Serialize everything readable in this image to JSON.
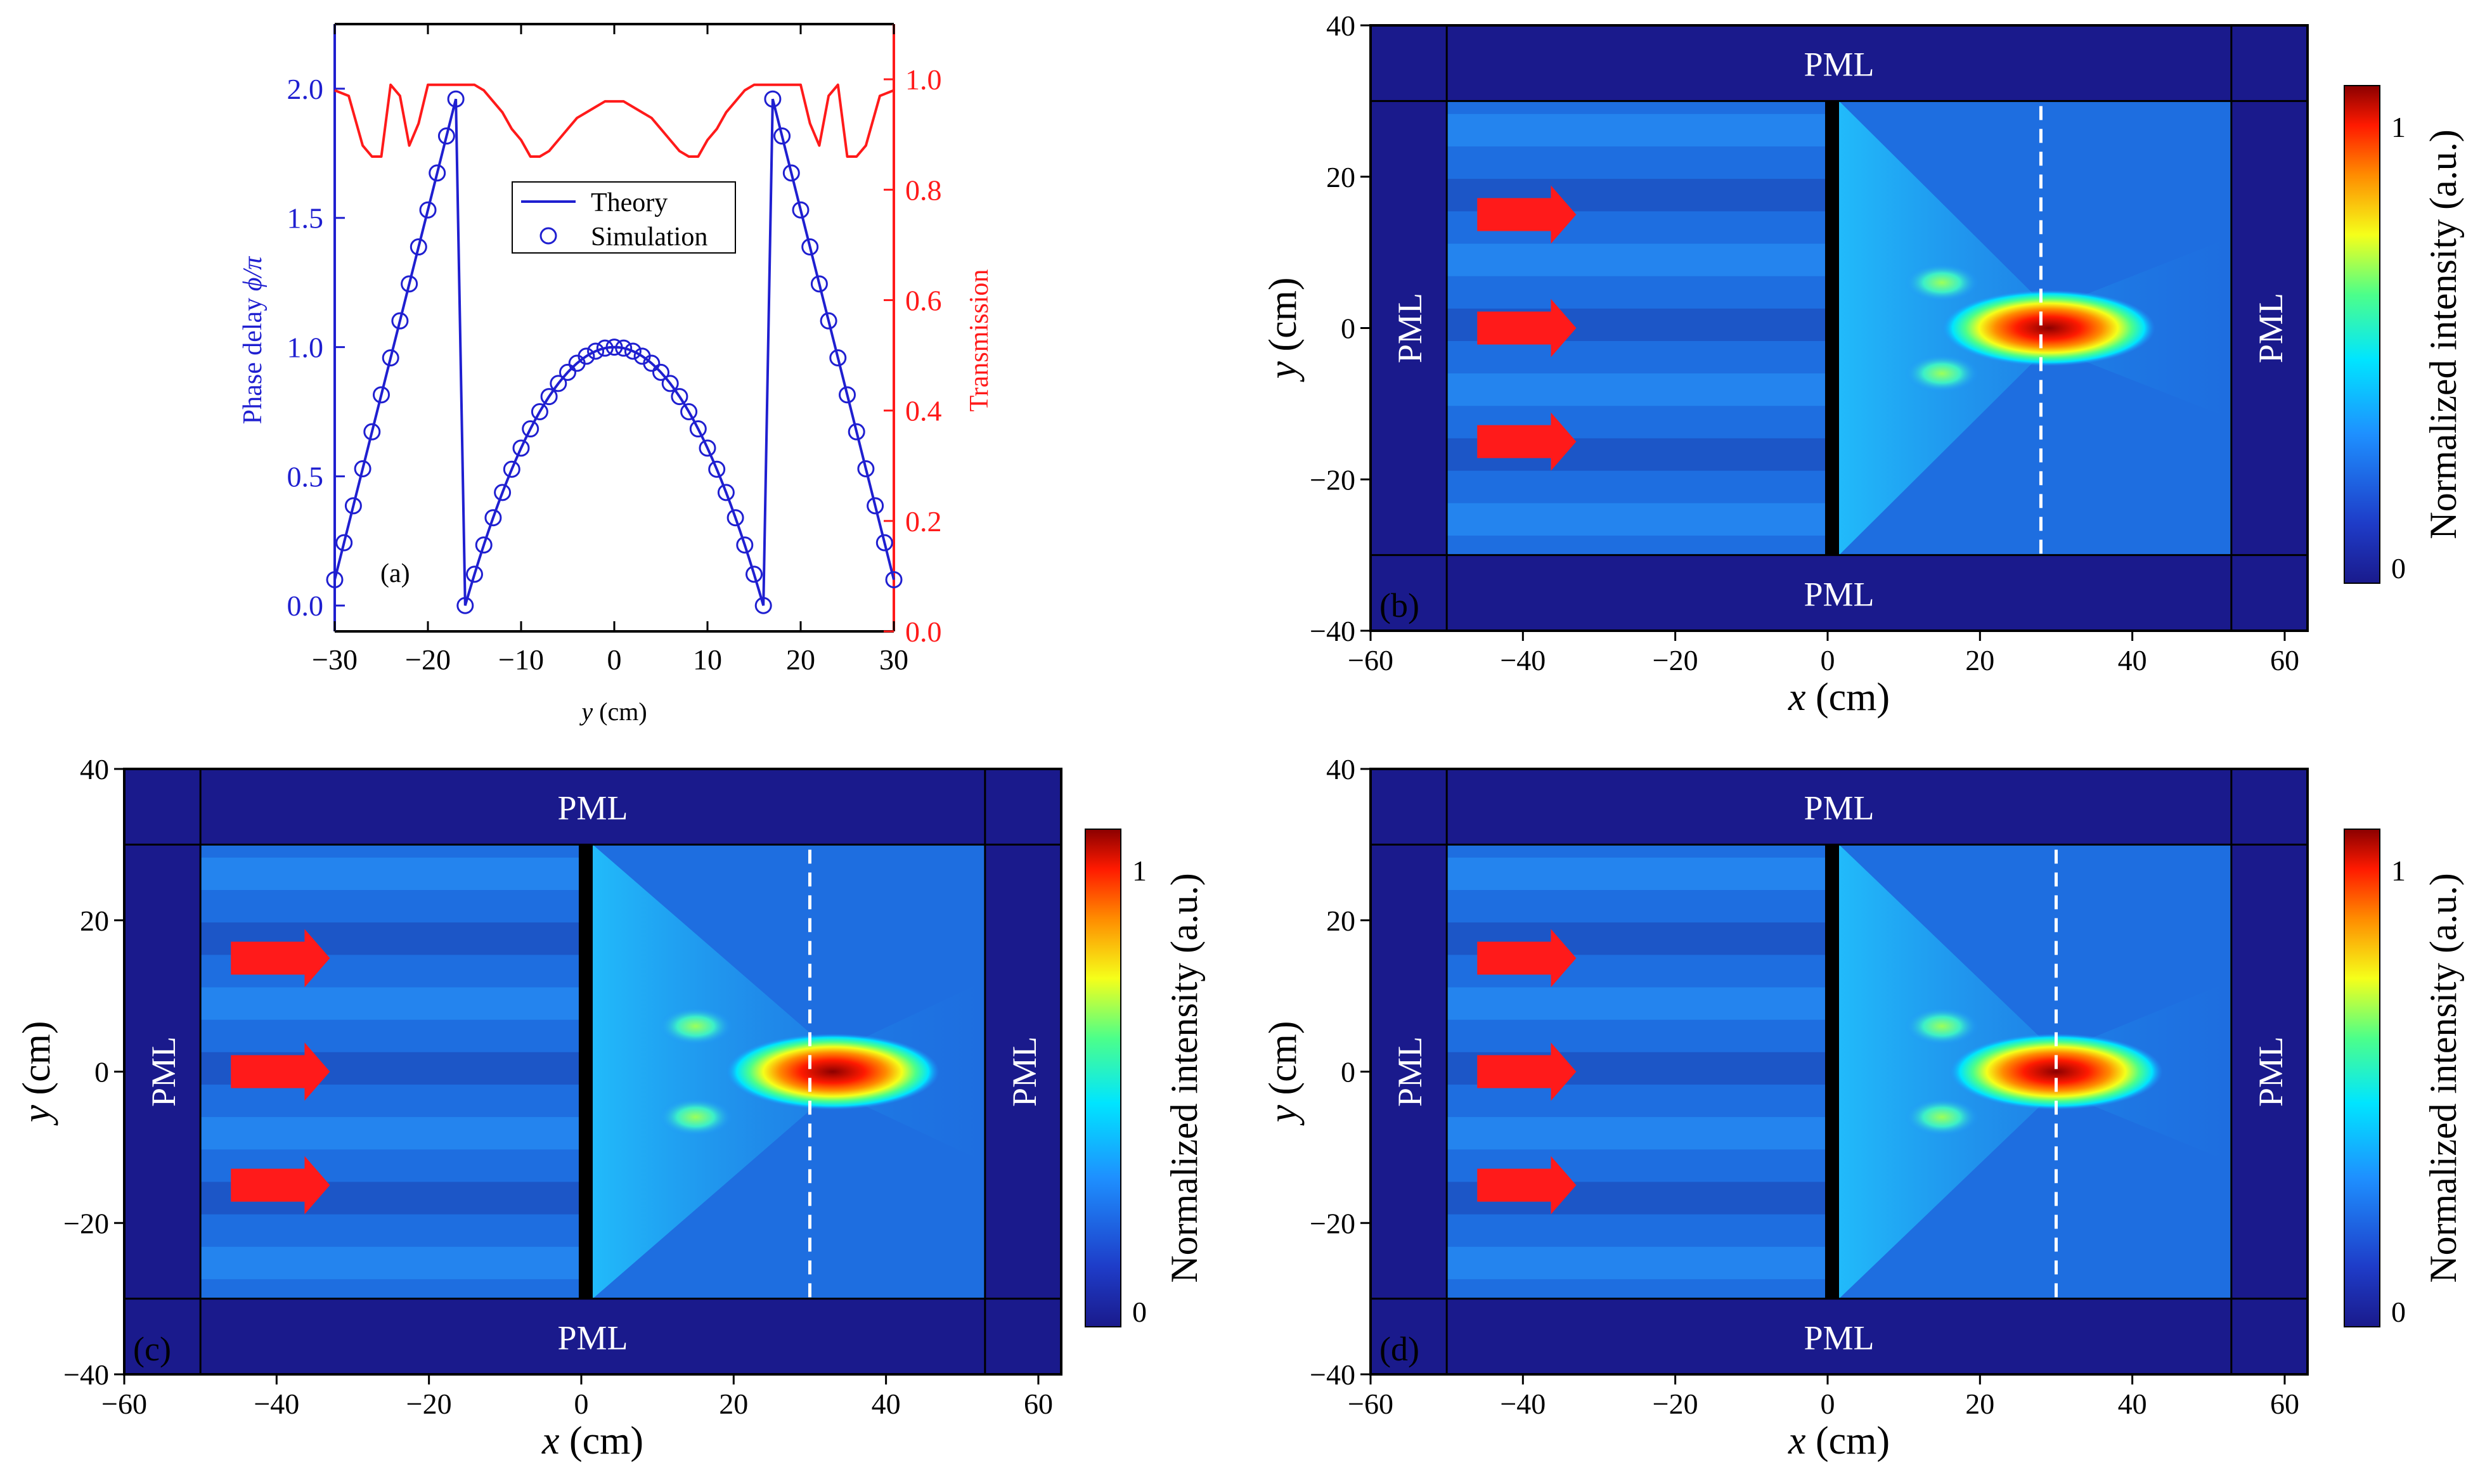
{
  "chart_data": [
    {
      "panel": "a",
      "type": "line",
      "panel_label": "(a)",
      "xlabel_var": "y",
      "xlabel_unit": "(cm)",
      "ylabel_left_text": "Phase delay ",
      "ylabel_left_var": "ϕ/π",
      "ylabel_right": "Transmission",
      "xlim": [
        -30,
        30
      ],
      "ylim_left": [
        -0.1,
        2.25
      ],
      "ylim_right": [
        0.0,
        1.1
      ],
      "x_ticks": [
        "−30",
        "−20",
        "−10",
        "0",
        "10",
        "20",
        "30"
      ],
      "y_ticks_left": [
        "0.0",
        "0.5",
        "1.0",
        "1.5",
        "2.0"
      ],
      "y_ticks_right": [
        "0.0",
        "0.2",
        "0.4",
        "0.6",
        "0.8",
        "1.0"
      ],
      "legend": [
        "Theory",
        "Simulation"
      ],
      "series": [
        {
          "name": "Theory",
          "axis": "left",
          "color": "#1f1fd0",
          "x": [
            -30,
            -17,
            -17,
            -16,
            0,
            16,
            17,
            17,
            30
          ],
          "y": [
            0.1,
            1.96,
            1.96,
            0.0,
            1.0,
            0.0,
            1.96,
            1.96,
            0.1
          ]
        },
        {
          "name": "Simulation",
          "axis": "left",
          "color": "#1f1fd0",
          "marker": "circle",
          "sampling": "every 1 cm from -30 to 30"
        },
        {
          "name": "Transmission",
          "axis": "right",
          "color": "#ff1a1a",
          "x": [
            -30,
            -28.5,
            -27,
            -26,
            -25,
            -24,
            -23,
            -22,
            -21,
            -20,
            -19,
            -18,
            -17,
            -16,
            -15,
            -14,
            -13,
            -12,
            -11,
            -10,
            -9,
            -8,
            -7,
            -6,
            -5,
            -4,
            -3,
            -2,
            -1,
            0,
            1,
            2,
            3,
            4,
            5,
            6,
            7,
            8,
            9,
            10,
            11,
            12,
            13,
            14,
            15,
            16,
            17,
            18,
            19,
            20,
            21,
            22,
            23,
            24,
            25,
            26,
            27,
            28.5,
            30
          ],
          "y": [
            0.98,
            0.97,
            0.88,
            0.86,
            0.86,
            0.99,
            0.97,
            0.88,
            0.92,
            0.99,
            0.99,
            0.99,
            0.99,
            0.99,
            0.99,
            0.98,
            0.96,
            0.94,
            0.91,
            0.89,
            0.86,
            0.86,
            0.87,
            0.89,
            0.91,
            0.93,
            0.94,
            0.95,
            0.96,
            0.96,
            0.96,
            0.95,
            0.94,
            0.93,
            0.91,
            0.89,
            0.87,
            0.86,
            0.86,
            0.89,
            0.91,
            0.94,
            0.96,
            0.98,
            0.99,
            0.99,
            0.99,
            0.99,
            0.99,
            0.99,
            0.92,
            0.88,
            0.97,
            0.99,
            0.86,
            0.86,
            0.88,
            0.97,
            0.98
          ]
        }
      ]
    },
    {
      "panel": "b",
      "type": "heatmap",
      "panel_label": "(b)",
      "xlabel_var": "x",
      "xlabel_unit": "(cm)",
      "ylabel_var": "y",
      "ylabel_unit": "(cm)",
      "xlim": [
        -60,
        63
      ],
      "ylim": [
        -40,
        40
      ],
      "x_ticks": [
        "−60",
        "−40",
        "−20",
        "0",
        "20",
        "40",
        "60"
      ],
      "y_ticks": [
        "−40",
        "−20",
        "0",
        "20",
        "40"
      ],
      "pml_labels": [
        "PML",
        "PML",
        "PML",
        "PML"
      ],
      "colorbar_label": "Normalized intensity (a.u.)",
      "colorbar_ticks": [
        "0",
        "1"
      ],
      "focus_x": 28,
      "focus_center_x": 29,
      "arrows_y": [
        15,
        0,
        -15
      ]
    },
    {
      "panel": "c",
      "type": "heatmap",
      "panel_label": "(c)",
      "xlabel_var": "x",
      "xlabel_unit": "(cm)",
      "ylabel_var": "y",
      "ylabel_unit": "(cm)",
      "xlim": [
        -60,
        63
      ],
      "ylim": [
        -40,
        40
      ],
      "x_ticks": [
        "−60",
        "−40",
        "−20",
        "0",
        "20",
        "40",
        "60"
      ],
      "y_ticks": [
        "−40",
        "−20",
        "0",
        "20",
        "40"
      ],
      "pml_labels": [
        "PML",
        "PML",
        "PML",
        "PML"
      ],
      "colorbar_label": "Normalized intensity (a.u.)",
      "colorbar_ticks": [
        "0",
        "1"
      ],
      "focus_x": 30,
      "focus_center_x": 33,
      "arrows_y": [
        15,
        0,
        -15
      ]
    },
    {
      "panel": "d",
      "type": "heatmap",
      "panel_label": "(d)",
      "xlabel_var": "x",
      "xlabel_unit": "(cm)",
      "ylabel_var": "y",
      "ylabel_unit": "(cm)",
      "xlim": [
        -60,
        63
      ],
      "ylim": [
        -40,
        40
      ],
      "x_ticks": [
        "−60",
        "−40",
        "−20",
        "0",
        "20",
        "40",
        "60"
      ],
      "y_ticks": [
        "−40",
        "−20",
        "0",
        "20",
        "40"
      ],
      "pml_labels": [
        "PML",
        "PML",
        "PML",
        "PML"
      ],
      "colorbar_label": "Normalized intensity (a.u.)",
      "colorbar_ticks": [
        "0",
        "1"
      ],
      "focus_x": 30,
      "focus_center_x": 30,
      "arrows_y": [
        15,
        0,
        -15
      ]
    }
  ],
  "colors": {
    "phase": "#1f1fd0",
    "transmission": "#ff1a1a",
    "field_dark": "#1a1a8c",
    "arrow": "#ff1a1a"
  }
}
